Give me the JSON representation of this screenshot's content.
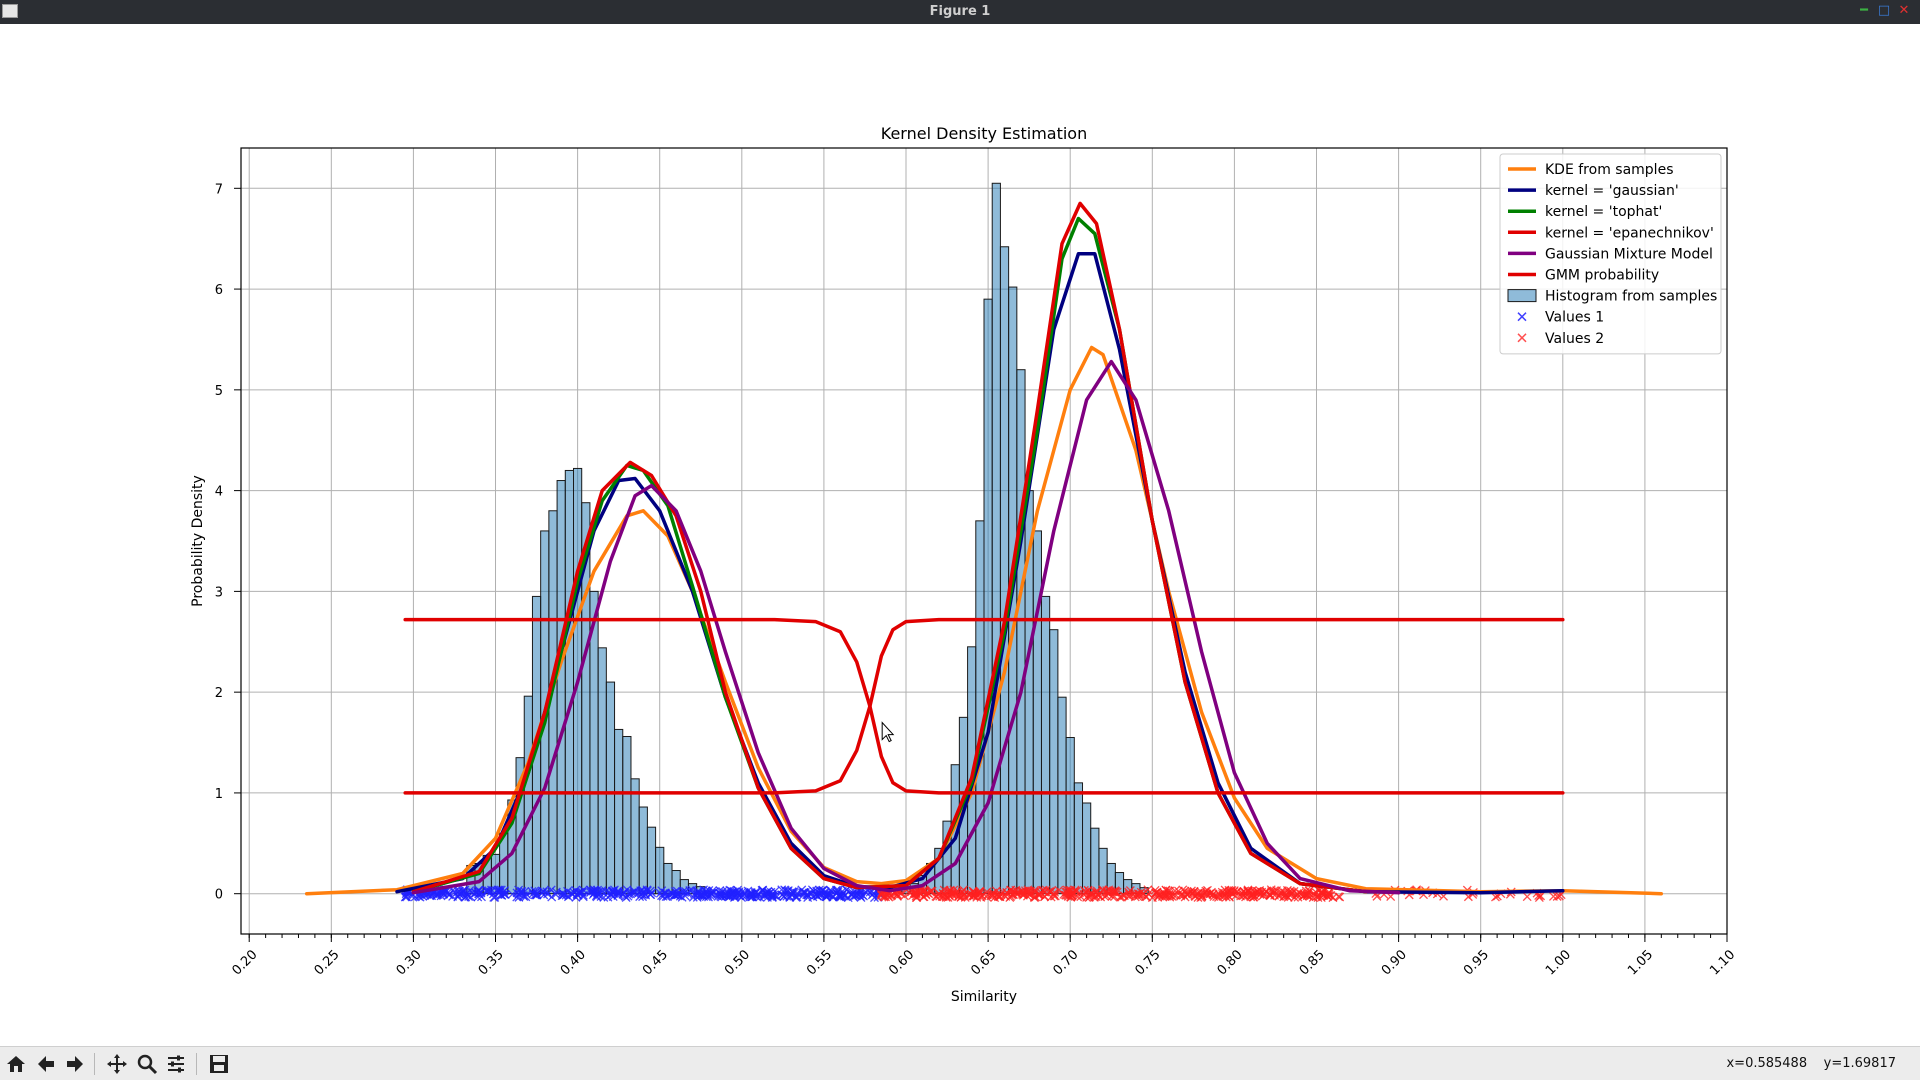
{
  "window": {
    "title": "Figure 1"
  },
  "toolbar": {
    "buttons": [
      "home-icon",
      "back-icon",
      "forward-icon",
      "pan-icon",
      "zoom-icon",
      "configure-icon",
      "save-icon"
    ],
    "coords_x": "x=0.585488",
    "coords_y": "y=1.69817"
  },
  "chart_data": {
    "type": "line",
    "title": "Kernel Density Estimation",
    "xlabel": "Similarity",
    "ylabel": "Probability Density",
    "xlim": [
      0.195,
      1.1
    ],
    "ylim": [
      -0.4,
      7.4
    ],
    "grid": true,
    "legend_position": "top-right",
    "xticks": [
      "0.20",
      "0.25",
      "0.30",
      "0.35",
      "0.40",
      "0.45",
      "0.50",
      "0.55",
      "0.60",
      "0.65",
      "0.70",
      "0.75",
      "0.80",
      "0.85",
      "0.90",
      "0.95",
      "1.00",
      "1.05",
      "1.10"
    ],
    "yticks": [
      "0",
      "1",
      "2",
      "3",
      "4",
      "5",
      "6",
      "7"
    ],
    "legend": [
      {
        "label": "KDE from samples",
        "kind": "line",
        "color": "#ff7f0e"
      },
      {
        "label": "kernel = 'gaussian'",
        "kind": "line",
        "color": "#000080"
      },
      {
        "label": "kernel = 'tophat'",
        "kind": "line",
        "color": "#008000"
      },
      {
        "label": "kernel = 'epanechnikov'",
        "kind": "line",
        "color": "#e00000"
      },
      {
        "label": "Gaussian Mixture Model",
        "kind": "line",
        "color": "#800080"
      },
      {
        "label": "GMM probability",
        "kind": "line",
        "color": "#e00000"
      },
      {
        "label": "Histogram from samples",
        "kind": "patch",
        "color": "#1f77b4"
      },
      {
        "label": "Values 1",
        "kind": "marker",
        "color": "#4040ff"
      },
      {
        "label": "Values 2",
        "kind": "marker",
        "color": "#ff5050"
      }
    ],
    "histogram": {
      "color": "#1f77b4",
      "bins": [
        {
          "x": 0.335,
          "h": 0.28
        },
        {
          "x": 0.34,
          "h": 0.3
        },
        {
          "x": 0.345,
          "h": 0.38
        },
        {
          "x": 0.35,
          "h": 0.39
        },
        {
          "x": 0.355,
          "h": 0.6
        },
        {
          "x": 0.36,
          "h": 0.93
        },
        {
          "x": 0.365,
          "h": 1.35
        },
        {
          "x": 0.37,
          "h": 1.96
        },
        {
          "x": 0.375,
          "h": 2.95
        },
        {
          "x": 0.38,
          "h": 3.6
        },
        {
          "x": 0.385,
          "h": 3.8
        },
        {
          "x": 0.39,
          "h": 4.1
        },
        {
          "x": 0.395,
          "h": 4.2
        },
        {
          "x": 0.4,
          "h": 4.22
        },
        {
          "x": 0.405,
          "h": 3.88
        },
        {
          "x": 0.41,
          "h": 3.0
        },
        {
          "x": 0.415,
          "h": 2.44
        },
        {
          "x": 0.42,
          "h": 2.1
        },
        {
          "x": 0.425,
          "h": 1.63
        },
        {
          "x": 0.43,
          "h": 1.56
        },
        {
          "x": 0.435,
          "h": 1.14
        },
        {
          "x": 0.44,
          "h": 0.86
        },
        {
          "x": 0.445,
          "h": 0.66
        },
        {
          "x": 0.45,
          "h": 0.46
        },
        {
          "x": 0.455,
          "h": 0.3
        },
        {
          "x": 0.46,
          "h": 0.23
        },
        {
          "x": 0.465,
          "h": 0.14
        },
        {
          "x": 0.47,
          "h": 0.1
        },
        {
          "x": 0.475,
          "h": 0.07
        },
        {
          "x": 0.6,
          "h": 0.06
        },
        {
          "x": 0.605,
          "h": 0.1
        },
        {
          "x": 0.61,
          "h": 0.18
        },
        {
          "x": 0.615,
          "h": 0.3
        },
        {
          "x": 0.62,
          "h": 0.45
        },
        {
          "x": 0.625,
          "h": 0.72
        },
        {
          "x": 0.63,
          "h": 1.28
        },
        {
          "x": 0.635,
          "h": 1.75
        },
        {
          "x": 0.64,
          "h": 2.45
        },
        {
          "x": 0.645,
          "h": 3.7
        },
        {
          "x": 0.65,
          "h": 5.9
        },
        {
          "x": 0.655,
          "h": 7.05
        },
        {
          "x": 0.66,
          "h": 6.42
        },
        {
          "x": 0.665,
          "h": 6.02
        },
        {
          "x": 0.67,
          "h": 5.2
        },
        {
          "x": 0.675,
          "h": 4.0
        },
        {
          "x": 0.68,
          "h": 3.6
        },
        {
          "x": 0.685,
          "h": 2.95
        },
        {
          "x": 0.69,
          "h": 2.62
        },
        {
          "x": 0.695,
          "h": 1.95
        },
        {
          "x": 0.7,
          "h": 1.55
        },
        {
          "x": 0.705,
          "h": 1.1
        },
        {
          "x": 0.71,
          "h": 0.9
        },
        {
          "x": 0.715,
          "h": 0.65
        },
        {
          "x": 0.72,
          "h": 0.45
        },
        {
          "x": 0.725,
          "h": 0.3
        },
        {
          "x": 0.73,
          "h": 0.21
        },
        {
          "x": 0.735,
          "h": 0.14
        },
        {
          "x": 0.74,
          "h": 0.1
        },
        {
          "x": 0.745,
          "h": 0.06
        }
      ]
    },
    "series": [
      {
        "name": "KDE from samples",
        "color": "#ff7f0e",
        "points": [
          [
            0.235,
            0
          ],
          [
            0.29,
            0.04
          ],
          [
            0.33,
            0.2
          ],
          [
            0.35,
            0.55
          ],
          [
            0.37,
            1.3
          ],
          [
            0.39,
            2.3
          ],
          [
            0.41,
            3.2
          ],
          [
            0.43,
            3.75
          ],
          [
            0.44,
            3.8
          ],
          [
            0.455,
            3.55
          ],
          [
            0.47,
            3.0
          ],
          [
            0.49,
            2.1
          ],
          [
            0.51,
            1.25
          ],
          [
            0.53,
            0.62
          ],
          [
            0.55,
            0.26
          ],
          [
            0.57,
            0.12
          ],
          [
            0.585,
            0.1
          ],
          [
            0.6,
            0.13
          ],
          [
            0.62,
            0.35
          ],
          [
            0.64,
            1.0
          ],
          [
            0.66,
            2.2
          ],
          [
            0.68,
            3.8
          ],
          [
            0.7,
            5.0
          ],
          [
            0.713,
            5.42
          ],
          [
            0.72,
            5.35
          ],
          [
            0.74,
            4.4
          ],
          [
            0.76,
            3.0
          ],
          [
            0.78,
            1.8
          ],
          [
            0.8,
            0.95
          ],
          [
            0.82,
            0.45
          ],
          [
            0.85,
            0.15
          ],
          [
            0.88,
            0.05
          ],
          [
            0.95,
            0.02
          ],
          [
            1.0,
            0.03
          ],
          [
            1.06,
            0
          ]
        ]
      },
      {
        "name": "kernel = 'gaussian'",
        "color": "#000080",
        "points": [
          [
            0.29,
            0.02
          ],
          [
            0.33,
            0.15
          ],
          [
            0.35,
            0.45
          ],
          [
            0.37,
            1.2
          ],
          [
            0.39,
            2.4
          ],
          [
            0.41,
            3.6
          ],
          [
            0.425,
            4.1
          ],
          [
            0.435,
            4.12
          ],
          [
            0.45,
            3.8
          ],
          [
            0.47,
            3.0
          ],
          [
            0.49,
            1.95
          ],
          [
            0.51,
            1.1
          ],
          [
            0.53,
            0.5
          ],
          [
            0.55,
            0.18
          ],
          [
            0.57,
            0.07
          ],
          [
            0.59,
            0.06
          ],
          [
            0.61,
            0.15
          ],
          [
            0.63,
            0.55
          ],
          [
            0.65,
            1.6
          ],
          [
            0.67,
            3.5
          ],
          [
            0.69,
            5.6
          ],
          [
            0.705,
            6.35
          ],
          [
            0.715,
            6.35
          ],
          [
            0.73,
            5.4
          ],
          [
            0.75,
            3.7
          ],
          [
            0.77,
            2.2
          ],
          [
            0.79,
            1.1
          ],
          [
            0.81,
            0.45
          ],
          [
            0.84,
            0.1
          ],
          [
            0.88,
            0.02
          ],
          [
            0.95,
            0.01
          ],
          [
            1.0,
            0.03
          ]
        ]
      },
      {
        "name": "kernel = 'tophat'",
        "color": "#008000",
        "points": [
          [
            0.3,
            0.02
          ],
          [
            0.34,
            0.2
          ],
          [
            0.36,
            0.7
          ],
          [
            0.38,
            1.7
          ],
          [
            0.4,
            3.1
          ],
          [
            0.415,
            3.9
          ],
          [
            0.43,
            4.25
          ],
          [
            0.44,
            4.2
          ],
          [
            0.455,
            3.85
          ],
          [
            0.47,
            3.05
          ],
          [
            0.49,
            1.95
          ],
          [
            0.51,
            1.05
          ],
          [
            0.53,
            0.45
          ],
          [
            0.55,
            0.15
          ],
          [
            0.57,
            0.06
          ],
          [
            0.6,
            0.08
          ],
          [
            0.62,
            0.35
          ],
          [
            0.64,
            1.1
          ],
          [
            0.66,
            2.6
          ],
          [
            0.68,
            4.6
          ],
          [
            0.695,
            6.3
          ],
          [
            0.705,
            6.7
          ],
          [
            0.715,
            6.55
          ],
          [
            0.73,
            5.6
          ],
          [
            0.75,
            3.7
          ],
          [
            0.77,
            2.1
          ],
          [
            0.79,
            1.0
          ],
          [
            0.81,
            0.4
          ],
          [
            0.84,
            0.1
          ],
          [
            0.88,
            0.02
          ]
        ]
      },
      {
        "name": "kernel = 'epanechnikov'",
        "color": "#e00000",
        "points": [
          [
            0.3,
            0.02
          ],
          [
            0.34,
            0.22
          ],
          [
            0.36,
            0.75
          ],
          [
            0.38,
            1.8
          ],
          [
            0.4,
            3.2
          ],
          [
            0.415,
            4.0
          ],
          [
            0.432,
            4.28
          ],
          [
            0.445,
            4.15
          ],
          [
            0.46,
            3.75
          ],
          [
            0.475,
            3.0
          ],
          [
            0.49,
            2.0
          ],
          [
            0.51,
            1.05
          ],
          [
            0.53,
            0.45
          ],
          [
            0.55,
            0.15
          ],
          [
            0.57,
            0.06
          ],
          [
            0.6,
            0.08
          ],
          [
            0.62,
            0.35
          ],
          [
            0.64,
            1.15
          ],
          [
            0.66,
            2.7
          ],
          [
            0.68,
            4.8
          ],
          [
            0.695,
            6.45
          ],
          [
            0.706,
            6.85
          ],
          [
            0.716,
            6.65
          ],
          [
            0.73,
            5.6
          ],
          [
            0.75,
            3.7
          ],
          [
            0.77,
            2.1
          ],
          [
            0.79,
            1.0
          ],
          [
            0.81,
            0.4
          ],
          [
            0.84,
            0.1
          ],
          [
            0.88,
            0.02
          ]
        ]
      },
      {
        "name": "Gaussian Mixture Model",
        "color": "#800080",
        "points": [
          [
            0.3,
            0.01
          ],
          [
            0.34,
            0.12
          ],
          [
            0.36,
            0.4
          ],
          [
            0.38,
            1.05
          ],
          [
            0.4,
            2.1
          ],
          [
            0.42,
            3.3
          ],
          [
            0.435,
            3.95
          ],
          [
            0.445,
            4.05
          ],
          [
            0.46,
            3.8
          ],
          [
            0.475,
            3.2
          ],
          [
            0.49,
            2.4
          ],
          [
            0.51,
            1.4
          ],
          [
            0.53,
            0.65
          ],
          [
            0.55,
            0.25
          ],
          [
            0.57,
            0.08
          ],
          [
            0.59,
            0.03
          ],
          [
            0.61,
            0.08
          ],
          [
            0.63,
            0.3
          ],
          [
            0.65,
            0.9
          ],
          [
            0.67,
            2.0
          ],
          [
            0.69,
            3.6
          ],
          [
            0.71,
            4.9
          ],
          [
            0.725,
            5.28
          ],
          [
            0.74,
            4.9
          ],
          [
            0.76,
            3.8
          ],
          [
            0.78,
            2.4
          ],
          [
            0.8,
            1.2
          ],
          [
            0.82,
            0.5
          ],
          [
            0.84,
            0.15
          ],
          [
            0.87,
            0.03
          ],
          [
            0.9,
            0.01
          ]
        ]
      },
      {
        "name": "GMM probability",
        "color": "#e00000",
        "points": [
          [
            0.295,
            2.72
          ],
          [
            0.52,
            2.72
          ],
          [
            0.545,
            2.7
          ],
          [
            0.56,
            2.6
          ],
          [
            0.57,
            2.3
          ],
          [
            0.578,
            1.86
          ],
          [
            0.585,
            1.36
          ],
          [
            0.592,
            1.1
          ],
          [
            0.6,
            1.02
          ],
          [
            0.62,
            1.0
          ],
          [
            1.0,
            1.0
          ]
        ]
      },
      {
        "name": "GMM probability",
        "color": "#e00000",
        "points": [
          [
            0.295,
            1.0
          ],
          [
            0.52,
            1.0
          ],
          [
            0.545,
            1.02
          ],
          [
            0.56,
            1.12
          ],
          [
            0.57,
            1.42
          ],
          [
            0.578,
            1.86
          ],
          [
            0.585,
            2.36
          ],
          [
            0.592,
            2.62
          ],
          [
            0.6,
            2.7
          ],
          [
            0.62,
            2.72
          ],
          [
            1.0,
            2.72
          ]
        ]
      }
    ],
    "scatter": [
      {
        "name": "Values 1",
        "color": "#2020ff",
        "range": [
          0.295,
          0.585
        ]
      },
      {
        "name": "Values 2",
        "color": "#ff2020",
        "range": [
          0.585,
          1.0
        ]
      }
    ]
  }
}
